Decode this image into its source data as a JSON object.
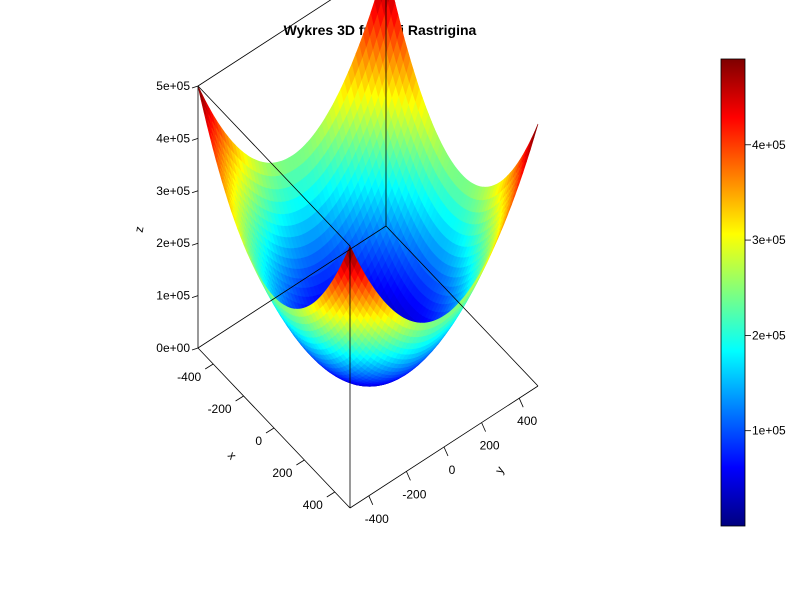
{
  "chart_data": {
    "type": "surface3d",
    "title": "Wykres 3D funkcji Rastrigina",
    "xlabel": "x",
    "ylabel": "y",
    "zlabel": "z",
    "xlim": [
      -500,
      500
    ],
    "ylim": [
      -500,
      500
    ],
    "zlim": [
      0,
      500000
    ],
    "x_ticks": [
      "-400",
      "-200",
      "0",
      "200",
      "400"
    ],
    "y_ticks": [
      "-400",
      "-200",
      "0",
      "200",
      "400"
    ],
    "z_ticks": [
      "0e+00",
      "1e+05",
      "2e+05",
      "3e+05",
      "4e+05",
      "5e+05"
    ],
    "colorbar_ticks": [
      "1e+05",
      "2e+05",
      "3e+05",
      "4e+05"
    ],
    "colorbar_range": [
      0,
      490000
    ],
    "colormap": [
      "#00007f",
      "#0000ff",
      "#007fff",
      "#00ffff",
      "#7fff7f",
      "#ffff00",
      "#ff7f00",
      "#ff0000",
      "#7f0000"
    ]
  }
}
